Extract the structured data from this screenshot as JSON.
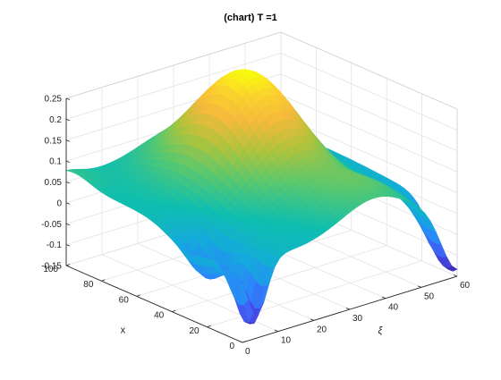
{
  "chart_data": {
    "type": "surface",
    "title": "(chart) T =1",
    "xlabel": "ξ",
    "ylabel": "x",
    "zlabel": "",
    "xlim": [
      0,
      60
    ],
    "ylim": [
      0,
      100
    ],
    "zlim": [
      -0.15,
      0.25
    ],
    "x_ticks": [
      0,
      10,
      20,
      30,
      40,
      50,
      60
    ],
    "x_tick_labels": [
      "0",
      "10",
      "20",
      "30",
      "40",
      "50",
      "60"
    ],
    "y_ticks": [
      0,
      20,
      40,
      60,
      80,
      100
    ],
    "y_tick_labels": [
      "0",
      "20",
      "40",
      "60",
      "80",
      "100"
    ],
    "z_ticks": [
      -0.15,
      -0.1,
      -0.05,
      0,
      0.05,
      0.1,
      0.15,
      0.2,
      0.25
    ],
    "z_tick_labels": [
      "-0.15",
      "-0.1",
      "-0.05",
      "0",
      "0.05",
      "0.1",
      "0.15",
      "0.2",
      "0.25"
    ],
    "grid": true,
    "colormap": "parula",
    "description_of_surface": {
      "peak_value": 0.25,
      "minimum_value": -0.14,
      "edge_x0_values_xi_0_10_20_30_40_50_60": [
        -0.13,
        -0.09,
        -0.03,
        0.01,
        0.03,
        -0.02,
        -0.09
      ],
      "edge_x100_values_xi_0_10_20_30_40_50_60": [
        0.03,
        0.06,
        0.09,
        0.12,
        0.13,
        0.1,
        0.06
      ]
    }
  }
}
